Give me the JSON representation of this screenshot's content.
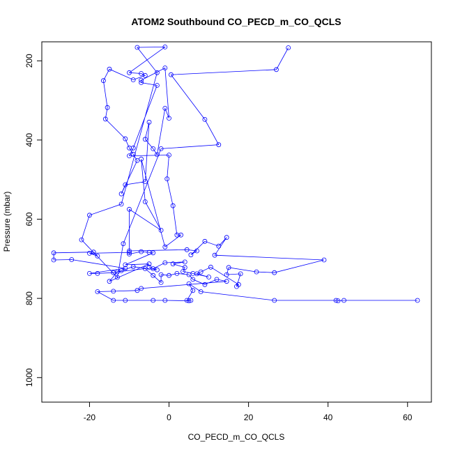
{
  "chart_data": {
    "type": "scatter",
    "title": "ATOM2 Southbound CO_PECD_m_CO_QCLS",
    "xlabel": "CO_PECD_m_CO_QCLS",
    "ylabel": "Pressure (mbar)",
    "xlim": [
      -32,
      66
    ],
    "ylim": [
      1062,
      152
    ],
    "y_reversed": true,
    "x_ticks": [
      -20,
      0,
      20,
      40,
      60
    ],
    "y_ticks": [
      200,
      400,
      600,
      800,
      1000
    ],
    "x_tick_labels": [
      "-20",
      "0",
      "20",
      "40",
      "60"
    ],
    "y_tick_labels": [
      "200",
      "400",
      "600",
      "800",
      "1000"
    ],
    "grid": false,
    "legend": "none",
    "colors": {
      "series": "#0000ff"
    },
    "series": [
      {
        "points": [
          [
            30,
            167
          ],
          [
            27,
            222
          ],
          [
            0.5,
            235
          ],
          [
            9,
            348
          ],
          [
            12.5,
            412
          ],
          [
            -2,
            422
          ],
          [
            -11.5,
            662
          ],
          [
            -13,
            747
          ],
          [
            -22,
            652
          ],
          [
            -20,
            590
          ],
          [
            -12,
            562
          ],
          [
            -3,
            230
          ],
          [
            -8,
            166
          ],
          [
            -1,
            165
          ],
          [
            -10,
            230
          ],
          [
            -7,
            232
          ],
          [
            -6,
            237
          ],
          [
            -9,
            248
          ],
          [
            -15,
            221
          ],
          [
            -16.5,
            250
          ],
          [
            -15.5,
            318
          ],
          [
            -16,
            347
          ],
          [
            -11,
            397
          ],
          [
            -10,
            420
          ],
          [
            -9,
            436
          ],
          [
            -8,
            452
          ],
          [
            -12,
            536
          ],
          [
            -11,
            513
          ],
          [
            -6,
            505
          ],
          [
            -5,
            355
          ],
          [
            -6,
            398
          ],
          [
            -4,
            422
          ],
          [
            -3,
            437
          ],
          [
            -1,
            320
          ],
          [
            0,
            345
          ],
          [
            -1,
            218
          ],
          [
            -7,
            249
          ],
          [
            -7,
            255
          ],
          [
            -3,
            262
          ],
          [
            -9,
            420
          ],
          [
            -10,
            440
          ],
          [
            0,
            438
          ],
          [
            -0.5,
            498
          ],
          [
            1,
            566
          ],
          [
            2,
            640
          ],
          [
            3,
            640
          ],
          [
            -1,
            670
          ],
          [
            -7,
            448
          ],
          [
            -6,
            556
          ],
          [
            -2,
            628
          ],
          [
            -10,
            575
          ],
          [
            -10,
            680
          ],
          [
            4.5,
            677
          ],
          [
            7,
            680
          ],
          [
            5.5,
            690
          ],
          [
            9,
            656
          ],
          [
            12.5,
            668
          ],
          [
            14.5,
            646
          ],
          [
            11.5,
            691
          ],
          [
            39,
            703
          ],
          [
            26.5,
            735
          ],
          [
            22,
            733
          ],
          [
            15,
            722
          ],
          [
            14.5,
            740
          ],
          [
            18,
            738
          ],
          [
            17,
            770
          ],
          [
            17.5,
            765
          ],
          [
            10.5,
            721
          ],
          [
            8,
            733
          ],
          [
            7,
            738
          ],
          [
            10,
            746
          ],
          [
            6,
            737
          ],
          [
            3.5,
            732
          ],
          [
            4,
            722
          ],
          [
            1,
            713
          ],
          [
            4,
            708
          ],
          [
            -1,
            710
          ],
          [
            -4,
            725
          ],
          [
            -5,
            721
          ],
          [
            -3,
            728
          ],
          [
            -9,
            720
          ],
          [
            -12,
            730
          ],
          [
            -14,
            735
          ],
          [
            -18,
            737
          ],
          [
            -20,
            737
          ],
          [
            -11,
            724
          ],
          [
            -24.5,
            702
          ],
          [
            -29,
            703
          ],
          [
            -29,
            685
          ],
          [
            -19,
            683
          ],
          [
            -18,
            693
          ],
          [
            -20,
            686
          ],
          [
            -10,
            684
          ],
          [
            -10,
            688
          ],
          [
            -7,
            682
          ],
          [
            -5,
            684
          ],
          [
            -4,
            685
          ],
          [
            -11,
            715
          ],
          [
            -5,
            713
          ],
          [
            -15,
            757
          ],
          [
            -13,
            733
          ],
          [
            -6,
            725
          ],
          [
            -4,
            742
          ],
          [
            -2,
            760
          ],
          [
            -2,
            740
          ],
          [
            0,
            742
          ],
          [
            2,
            737
          ],
          [
            5,
            740
          ],
          [
            6,
            752
          ],
          [
            9,
            765
          ],
          [
            12,
            752
          ],
          [
            14.5,
            757
          ],
          [
            -7,
            775
          ],
          [
            -8,
            780
          ],
          [
            -14,
            782
          ],
          [
            -18,
            783
          ],
          [
            -14,
            805
          ],
          [
            -11,
            805
          ],
          [
            -4,
            805
          ],
          [
            -1,
            805
          ],
          [
            5,
            806
          ],
          [
            5.5,
            805
          ],
          [
            4.5,
            805
          ],
          [
            6,
            780
          ],
          [
            5,
            763
          ],
          [
            8,
            783
          ],
          [
            26.5,
            805
          ],
          [
            42,
            805
          ],
          [
            42.5,
            806
          ],
          [
            44,
            805
          ],
          [
            62.5,
            805
          ]
        ]
      }
    ]
  }
}
